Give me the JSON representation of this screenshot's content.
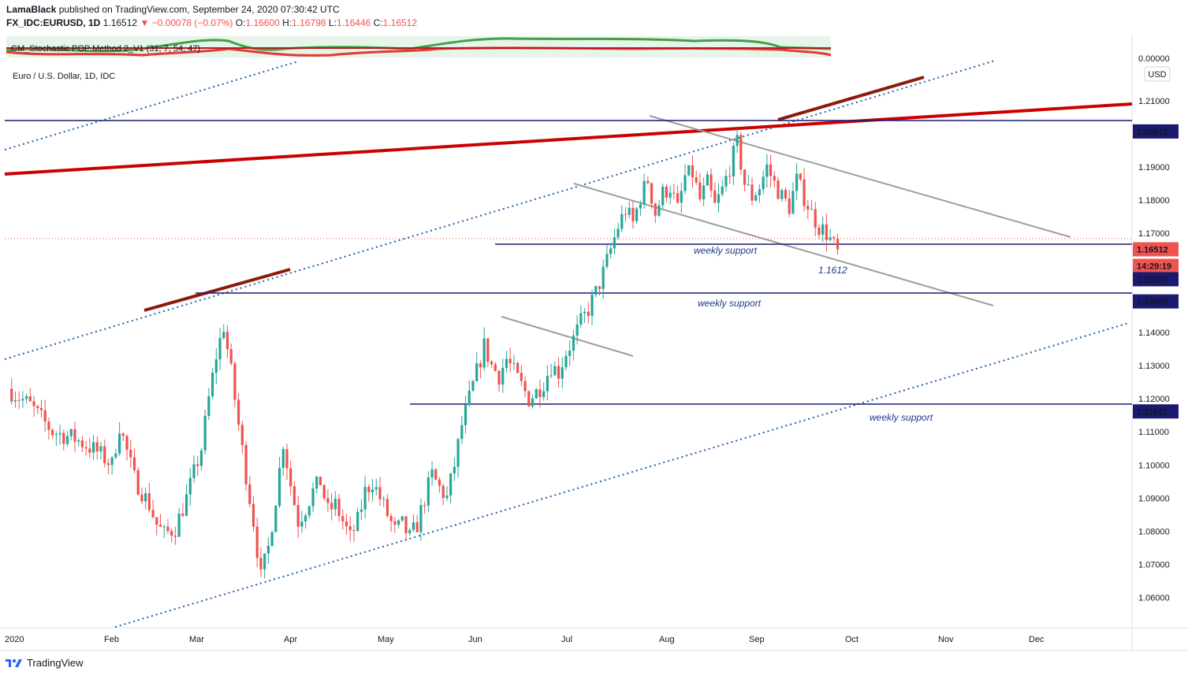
{
  "header": {
    "author": "LamaBlack",
    "published_text": "published on TradingView.com, September 24, 2020 07:30:42 UTC",
    "symbol": "FX_IDC:EURUSD, 1D",
    "last": "1.16512",
    "change": "−0.00078 (−0.07%)",
    "o_label": "O:",
    "o_value": "1.16600",
    "h_label": "H:",
    "h_value": "1.16798",
    "l_label": "L:",
    "l_value": "1.16446",
    "c_label": "C:",
    "c_value": "1.16512"
  },
  "indicator": {
    "name": "CM_Stochastic POP Method 2_V1 (31, 7, 54, 47)",
    "axis_value": "0.00000"
  },
  "chart_title": "Euro / U.S. Dollar, 1D, IDC",
  "currency": "USD",
  "footer": {
    "brand": "TradingView"
  },
  "colors": {
    "up": "#26a69a",
    "down": "#ef5350",
    "trend_red": "#cc0000",
    "dark_red": "#8b1a0a",
    "navy": "#1a1a6e",
    "channel_blue": "#1f5fa8",
    "grey": "#999999"
  },
  "chart_data": {
    "type": "candlestick",
    "title": "Euro / U.S. Dollar, 1D, IDC",
    "currency": "USD",
    "ylim": [
      1.0525,
      1.2178
    ],
    "y_ticks": [
      "1.21000",
      "1.20000",
      "1.19000",
      "1.18000",
      "1.17000",
      "1.16000",
      "1.15000",
      "1.14000",
      "1.13000",
      "1.12000",
      "1.11000",
      "1.10000",
      "1.09000",
      "1.08000",
      "1.07000",
      "1.06000"
    ],
    "x_ticks": [
      "2020",
      "Feb",
      "Mar",
      "Apr",
      "May",
      "Jun",
      "Jul",
      "Aug",
      "Sep",
      "Oct",
      "Nov",
      "Dec"
    ],
    "price_labels": [
      {
        "text": "1.20071",
        "price": 1.20071,
        "style": "navy"
      },
      {
        "text": "1.16512",
        "price": 1.16512,
        "style": "red"
      },
      {
        "text": "14:29:19",
        "price": 1.162,
        "style": "red"
      },
      {
        "text": "1.16373",
        "price": 1.16373,
        "style": "navy"
      },
      {
        "text": "1.14939",
        "price": 1.14939,
        "style": "navy"
      },
      {
        "text": "1.11617",
        "price": 1.11617,
        "style": "navy"
      }
    ],
    "horizontal_levels": [
      {
        "price": 1.20071,
        "from": "2020",
        "label": ""
      },
      {
        "price": 1.16373,
        "from": "Jun",
        "label": "weekly support"
      },
      {
        "price": 1.14939,
        "from": "Mar",
        "label": "weekly support"
      },
      {
        "price": 1.11617,
        "from": "May",
        "label": "weekly support"
      }
    ],
    "annotations": [
      "weekly support",
      "weekly support",
      "weekly support",
      "1.1612"
    ],
    "last_price": 1.16512,
    "waypoints": [
      [
        0,
        1.123
      ],
      [
        6,
        1.118
      ],
      [
        12,
        1.11
      ],
      [
        18,
        1.108
      ],
      [
        24,
        1.104
      ],
      [
        28,
        1.1
      ],
      [
        30,
        1.112
      ],
      [
        34,
        1.096
      ],
      [
        38,
        1.088
      ],
      [
        40,
        1.082
      ],
      [
        42,
        1.079
      ],
      [
        45,
        1.081
      ],
      [
        48,
        1.09
      ],
      [
        52,
        1.105
      ],
      [
        54,
        1.12
      ],
      [
        56,
        1.133
      ],
      [
        58,
        1.142
      ],
      [
        60,
        1.128
      ],
      [
        62,
        1.112
      ],
      [
        64,
        1.097
      ],
      [
        66,
        1.083
      ],
      [
        68,
        1.066
      ],
      [
        70,
        1.075
      ],
      [
        72,
        1.09
      ],
      [
        74,
        1.107
      ],
      [
        76,
        1.094
      ],
      [
        78,
        1.083
      ],
      [
        80,
        1.087
      ],
      [
        82,
        1.092
      ],
      [
        84,
        1.095
      ],
      [
        86,
        1.086
      ],
      [
        88,
        1.088
      ],
      [
        90,
        1.083
      ],
      [
        92,
        1.078
      ],
      [
        94,
        1.083
      ],
      [
        96,
        1.092
      ],
      [
        98,
        1.095
      ],
      [
        100,
        1.09
      ],
      [
        102,
        1.085
      ],
      [
        104,
        1.08
      ],
      [
        106,
        1.082
      ],
      [
        108,
        1.078
      ],
      [
        110,
        1.082
      ],
      [
        112,
        1.09
      ],
      [
        114,
        1.097
      ],
      [
        116,
        1.093
      ],
      [
        118,
        1.09
      ],
      [
        120,
        1.1
      ],
      [
        122,
        1.112
      ],
      [
        124,
        1.12
      ],
      [
        126,
        1.128
      ],
      [
        128,
        1.136
      ],
      [
        130,
        1.13
      ],
      [
        132,
        1.127
      ],
      [
        134,
        1.132
      ],
      [
        136,
        1.128
      ],
      [
        138,
        1.124
      ],
      [
        140,
        1.12
      ],
      [
        142,
        1.122
      ],
      [
        144,
        1.125
      ],
      [
        146,
        1.13
      ],
      [
        148,
        1.128
      ],
      [
        150,
        1.134
      ],
      [
        152,
        1.138
      ],
      [
        154,
        1.143
      ],
      [
        156,
        1.147
      ],
      [
        158,
        1.152
      ],
      [
        160,
        1.158
      ],
      [
        162,
        1.165
      ],
      [
        164,
        1.172
      ],
      [
        166,
        1.177
      ],
      [
        168,
        1.173
      ],
      [
        170,
        1.181
      ],
      [
        172,
        1.186
      ],
      [
        174,
        1.176
      ],
      [
        176,
        1.182
      ],
      [
        178,
        1.184
      ],
      [
        180,
        1.177
      ],
      [
        182,
        1.187
      ],
      [
        184,
        1.188
      ],
      [
        186,
        1.18
      ],
      [
        188,
        1.185
      ],
      [
        190,
        1.178
      ],
      [
        192,
        1.183
      ],
      [
        194,
        1.19
      ],
      [
        196,
        1.197
      ],
      [
        198,
        1.185
      ],
      [
        200,
        1.181
      ],
      [
        202,
        1.184
      ],
      [
        204,
        1.19
      ],
      [
        206,
        1.185
      ],
      [
        208,
        1.181
      ],
      [
        210,
        1.178
      ],
      [
        212,
        1.186
      ],
      [
        214,
        1.181
      ],
      [
        216,
        1.176
      ],
      [
        218,
        1.172
      ],
      [
        220,
        1.17
      ],
      [
        222,
        1.166
      ],
      [
        223,
        1.165
      ]
    ]
  }
}
